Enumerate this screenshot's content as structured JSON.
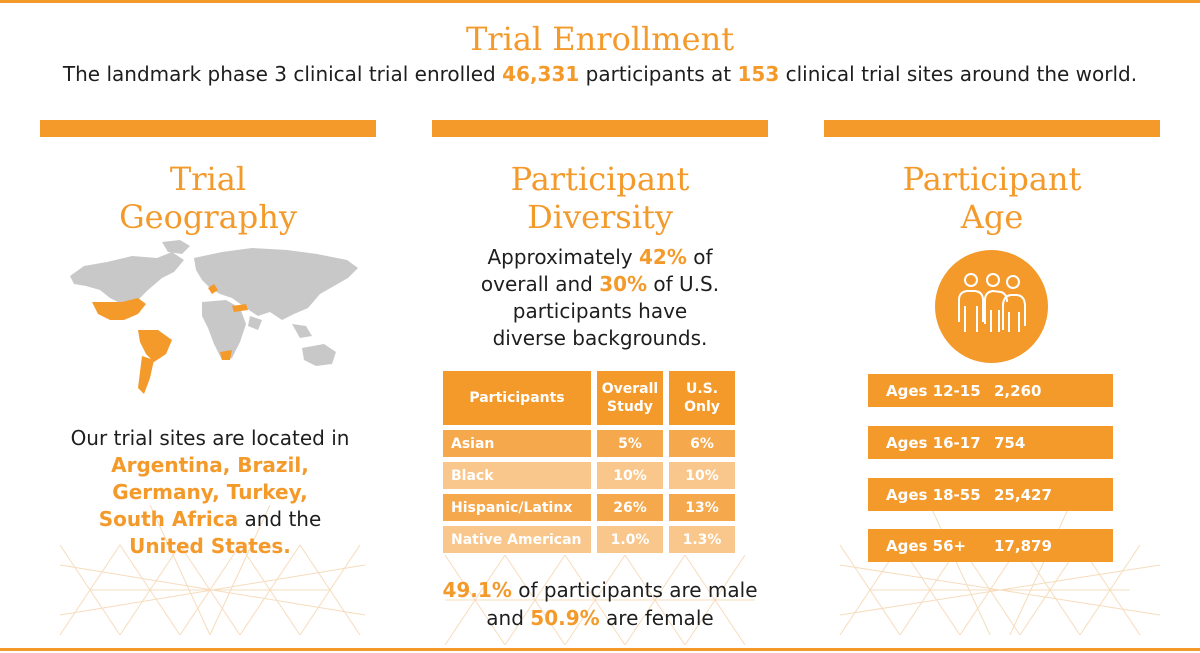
{
  "header": {
    "title": "Trial Enrollment",
    "intro_prefix": "The landmark phase 3 clinical trial enrolled ",
    "participants_count": "46,331",
    "intro_middle": " participants at ",
    "sites_count": "153",
    "intro_suffix": " clinical trial sites around the world."
  },
  "geography": {
    "title_line1": "Trial",
    "title_line2": "Geography",
    "icon": "world-map-icon",
    "text_prefix": "Our trial sites are located in",
    "countries_line1": "Argentina, Brazil,",
    "countries_line2": "Germany, Turkey,",
    "countries_line3": "South Africa",
    "text_and_the": " and the",
    "countries_line4": "United States."
  },
  "diversity": {
    "title_line1": "Participant",
    "title_line2": "Diversity",
    "line1_prefix": "Approximately ",
    "overall_pct": "42%",
    "line1_suffix": " of",
    "line2_prefix": "overall and ",
    "us_pct": "30%",
    "line2_suffix": " of U.S.",
    "line3": "participants have",
    "line4": "diverse backgrounds.",
    "table": {
      "headers": [
        "Participants",
        "Overall Study",
        "U.S. Only"
      ],
      "rows": [
        {
          "group": "Asian",
          "overall": "5%",
          "us": "6%"
        },
        {
          "group": "Black",
          "overall": "10%",
          "us": "10%"
        },
        {
          "group": "Hispanic/Latinx",
          "overall": "26%",
          "us": "13%"
        },
        {
          "group": "Native American",
          "overall": "1.0%",
          "us": "1.3%"
        }
      ]
    },
    "male_pct": "49.1%",
    "male_text": " of participants are male",
    "female_prefix": "and ",
    "female_pct": "50.9%",
    "female_text": " are female"
  },
  "age": {
    "title_line1": "Participant",
    "title_line2": "Age",
    "icon": "people-group-icon",
    "rows": [
      {
        "label": "Ages 12-15",
        "value": "2,260"
      },
      {
        "label": "Ages 16-17",
        "value": "754"
      },
      {
        "label": "Ages 18-55",
        "value": "25,427"
      },
      {
        "label": "Ages 56+",
        "value": "17,879"
      }
    ]
  },
  "colors": {
    "accent": "#f39a2b",
    "row_dark": "#f5a84c",
    "row_light": "#f9c78b",
    "map_gray": "#c8c8c8",
    "pattern": "#f6dcbd"
  }
}
